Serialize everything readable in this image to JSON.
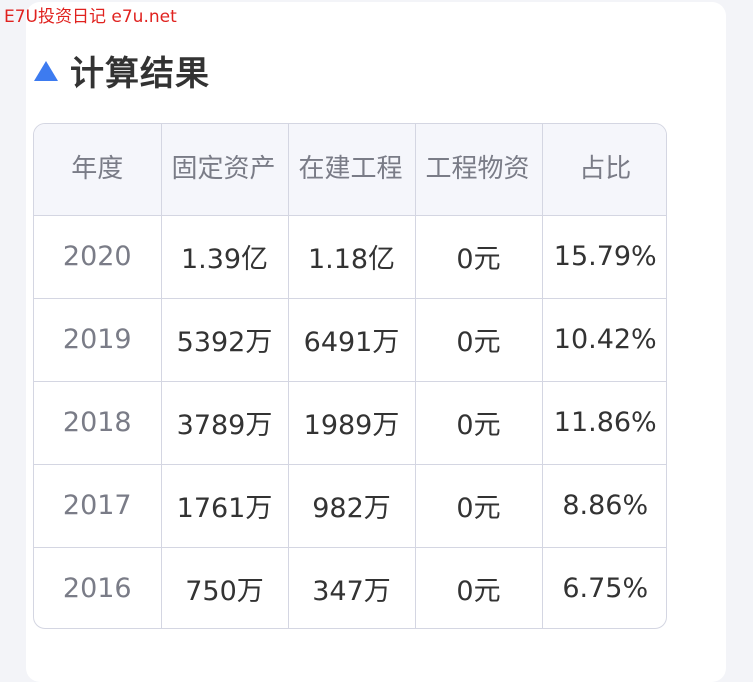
{
  "watermark": "E7U投资日记 e7u.net",
  "section": {
    "title": "计算结果",
    "icon": "triangle-up-icon"
  },
  "table": {
    "headers": [
      "年度",
      "固定资产",
      "在建工程",
      "工程物资",
      "占比"
    ],
    "rows": [
      [
        "2020",
        "1.39亿",
        "1.18亿",
        "0元",
        "15.79%"
      ],
      [
        "2019",
        "5392万",
        "6491万",
        "0元",
        "10.42%"
      ],
      [
        "2018",
        "3789万",
        "1989万",
        "0元",
        "11.86%"
      ],
      [
        "2017",
        "1761万",
        "982万",
        "0元",
        "8.86%"
      ],
      [
        "2016",
        "750万",
        "347万",
        "0元",
        "6.75%"
      ]
    ]
  },
  "colors": {
    "accent": "#3d7bf0",
    "watermark": "#e0221f"
  }
}
